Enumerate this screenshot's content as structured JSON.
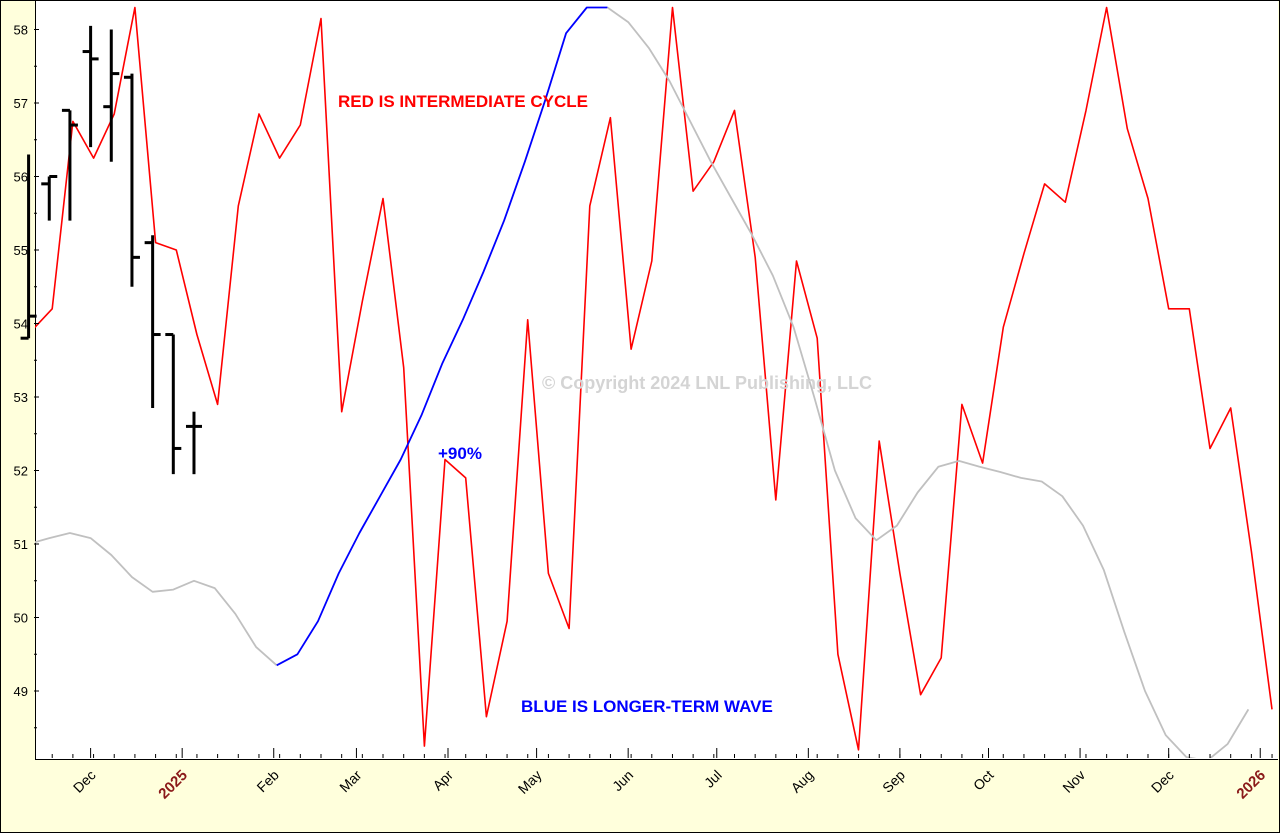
{
  "chart_data": {
    "type": "line",
    "title": "",
    "xlabel": "",
    "ylabel": "",
    "ylim": [
      48.3,
      58.3
    ],
    "yticks": [
      49,
      50,
      51,
      52,
      53,
      54,
      55,
      56,
      57,
      58
    ],
    "grid": false,
    "x_tick_labels": [
      {
        "label": "Dec",
        "year": false
      },
      {
        "label": "2025",
        "year": true
      },
      {
        "label": "Feb",
        "year": false
      },
      {
        "label": "Mar",
        "year": false
      },
      {
        "label": "Apr",
        "year": false
      },
      {
        "label": "May",
        "year": false
      },
      {
        "label": "Jun",
        "year": false
      },
      {
        "label": "Jul",
        "year": false
      },
      {
        "label": "Aug",
        "year": false
      },
      {
        "label": "Sep",
        "year": false
      },
      {
        "label": "Oct",
        "year": false
      },
      {
        "label": "Nov",
        "year": false
      },
      {
        "label": "Dec",
        "year": false
      },
      {
        "label": "2026",
        "year": true
      }
    ],
    "series": [
      {
        "color": "#ff0000",
        "points": [
          [
            "2024-11-04",
            53.65
          ],
          [
            "2024-11-11",
            53.9
          ],
          [
            "2024-11-18",
            54.2
          ],
          [
            "2024-11-25",
            56.75
          ],
          [
            "2024-12-02",
            56.25
          ],
          [
            "2024-12-09",
            56.85
          ],
          [
            "2024-12-16",
            58.3
          ],
          [
            "2024-12-23",
            55.1
          ],
          [
            "2024-12-30",
            55.0
          ],
          [
            "2025-01-06",
            53.85
          ],
          [
            "2025-01-13",
            52.9
          ],
          [
            "2025-01-20",
            55.6
          ],
          [
            "2025-01-27",
            56.85
          ],
          [
            "2025-02-03",
            56.25
          ],
          [
            "2025-02-10",
            56.7
          ],
          [
            "2025-02-17",
            58.15
          ],
          [
            "2025-02-24",
            52.8
          ],
          [
            "2025-03-03",
            54.3
          ],
          [
            "2025-03-10",
            55.7
          ],
          [
            "2025-03-17",
            53.4
          ],
          [
            "2025-03-24",
            48.25
          ],
          [
            "2025-03-31",
            52.15
          ],
          [
            "2025-04-07",
            51.9
          ],
          [
            "2025-04-14",
            48.65
          ],
          [
            "2025-04-21",
            49.95
          ],
          [
            "2025-04-28",
            54.05
          ],
          [
            "2025-05-05",
            50.6
          ],
          [
            "2025-05-12",
            49.85
          ],
          [
            "2025-05-19",
            55.6
          ],
          [
            "2025-05-26",
            56.8
          ],
          [
            "2025-06-02",
            53.65
          ],
          [
            "2025-06-09",
            54.85
          ],
          [
            "2025-06-16",
            58.3
          ],
          [
            "2025-06-23",
            55.8
          ],
          [
            "2025-06-30",
            56.2
          ],
          [
            "2025-07-07",
            56.9
          ],
          [
            "2025-07-14",
            54.9
          ],
          [
            "2025-07-21",
            51.6
          ],
          [
            "2025-07-28",
            54.85
          ],
          [
            "2025-08-04",
            53.8
          ],
          [
            "2025-08-11",
            49.5
          ],
          [
            "2025-08-18",
            48.2
          ],
          [
            "2025-08-25",
            52.4
          ],
          [
            "2025-09-01",
            50.6
          ],
          [
            "2025-09-08",
            48.95
          ],
          [
            "2025-09-15",
            49.45
          ],
          [
            "2025-09-22",
            52.9
          ],
          [
            "2025-09-29",
            52.1
          ],
          [
            "2025-10-06",
            53.95
          ],
          [
            "2025-10-13",
            54.95
          ],
          [
            "2025-10-20",
            55.9
          ],
          [
            "2025-10-27",
            55.65
          ],
          [
            "2025-11-03",
            56.9
          ],
          [
            "2025-11-10",
            58.3
          ],
          [
            "2025-11-17",
            56.65
          ],
          [
            "2025-11-24",
            55.7
          ],
          [
            "2025-12-01",
            54.2
          ],
          [
            "2025-12-08",
            54.2
          ],
          [
            "2025-12-15",
            52.3
          ],
          [
            "2025-12-22",
            52.85
          ],
          [
            "2025-12-29",
            50.9
          ],
          [
            "2026-01-05",
            48.75
          ]
        ]
      },
      {
        "color": "#c0c0c0",
        "points": [
          [
            "2024-11-10",
            51.0
          ],
          [
            "2024-11-17",
            51.08
          ],
          [
            "2024-11-24",
            51.15
          ],
          [
            "2024-12-01",
            51.08
          ],
          [
            "2024-12-08",
            50.85
          ],
          [
            "2024-12-15",
            50.55
          ],
          [
            "2024-12-22",
            50.35
          ],
          [
            "2024-12-29",
            50.38
          ],
          [
            "2025-01-05",
            50.5
          ],
          [
            "2025-01-12",
            50.4
          ],
          [
            "2025-01-19",
            50.05
          ],
          [
            "2025-01-26",
            49.6
          ],
          [
            "2025-02-02",
            49.35
          ]
        ]
      },
      {
        "color": "#0000ff",
        "points": [
          [
            "2025-02-02",
            49.35
          ],
          [
            "2025-02-09",
            49.5
          ],
          [
            "2025-02-16",
            49.95
          ],
          [
            "2025-02-23",
            50.6
          ],
          [
            "2025-03-02",
            51.15
          ],
          [
            "2025-03-09",
            51.65
          ],
          [
            "2025-03-16",
            52.15
          ],
          [
            "2025-03-23",
            52.75
          ],
          [
            "2025-03-30",
            53.45
          ],
          [
            "2025-04-06",
            54.05
          ],
          [
            "2025-04-13",
            54.7
          ],
          [
            "2025-04-20",
            55.4
          ],
          [
            "2025-04-27",
            56.2
          ],
          [
            "2025-05-04",
            57.05
          ],
          [
            "2025-05-11",
            57.95
          ],
          [
            "2025-05-18",
            58.3
          ],
          [
            "2025-05-25",
            58.3
          ]
        ]
      },
      {
        "color": "#c0c0c0",
        "points": [
          [
            "2025-05-25",
            58.3
          ],
          [
            "2025-06-01",
            58.1
          ],
          [
            "2025-06-08",
            57.75
          ],
          [
            "2025-06-15",
            57.3
          ],
          [
            "2025-06-22",
            56.75
          ],
          [
            "2025-06-29",
            56.2
          ],
          [
            "2025-07-06",
            55.7
          ],
          [
            "2025-07-13",
            55.2
          ],
          [
            "2025-07-20",
            54.65
          ],
          [
            "2025-07-27",
            53.95
          ],
          [
            "2025-08-03",
            53.0
          ],
          [
            "2025-08-10",
            52.0
          ],
          [
            "2025-08-17",
            51.35
          ],
          [
            "2025-08-24",
            51.05
          ],
          [
            "2025-08-31",
            51.25
          ],
          [
            "2025-09-07",
            51.7
          ],
          [
            "2025-09-14",
            52.05
          ],
          [
            "2025-09-21",
            52.13
          ],
          [
            "2025-09-28",
            52.05
          ],
          [
            "2025-10-05",
            51.98
          ],
          [
            "2025-10-12",
            51.9
          ],
          [
            "2025-10-19",
            51.85
          ],
          [
            "2025-10-26",
            51.65
          ],
          [
            "2025-11-02",
            51.25
          ],
          [
            "2025-11-09",
            50.65
          ],
          [
            "2025-11-16",
            49.8
          ],
          [
            "2025-11-23",
            49.0
          ],
          [
            "2025-11-30",
            48.4
          ],
          [
            "2025-12-07",
            48.1
          ],
          [
            "2025-12-14",
            48.05
          ],
          [
            "2025-12-21",
            48.28
          ],
          [
            "2025-12-28",
            48.75
          ]
        ]
      }
    ],
    "ohlc": [
      {
        "date": "2024-11-10",
        "open": 53.8,
        "high": 56.3,
        "low": 53.8,
        "close": 54.1
      },
      {
        "date": "2024-11-17",
        "open": 55.9,
        "high": 56.0,
        "low": 55.4,
        "close": 56.0
      },
      {
        "date": "2024-11-24",
        "open": 56.9,
        "high": 56.9,
        "low": 55.4,
        "close": 56.7
      },
      {
        "date": "2024-12-01",
        "open": 57.7,
        "high": 58.05,
        "low": 56.4,
        "close": 57.6
      },
      {
        "date": "2024-12-08",
        "open": 56.95,
        "high": 58.0,
        "low": 56.2,
        "close": 57.4
      },
      {
        "date": "2024-12-15",
        "open": 57.35,
        "high": 57.4,
        "low": 54.5,
        "close": 54.9
      },
      {
        "date": "2024-12-22",
        "open": 55.1,
        "high": 55.2,
        "low": 52.85,
        "close": 53.85
      },
      {
        "date": "2024-12-29",
        "open": 53.85,
        "high": 53.85,
        "low": 51.95,
        "close": 52.3
      },
      {
        "date": "2025-01-05",
        "open": 52.6,
        "high": 52.8,
        "low": 51.95,
        "close": 52.6
      }
    ],
    "annotations": [
      {
        "text": "RED IS INTERMEDIATE CYCLE",
        "color": "#ff0000"
      },
      {
        "text": "+90%",
        "color": "#0000ff"
      },
      {
        "text": "BLUE IS LONGER-TERM WAVE",
        "color": "#0000ff"
      },
      {
        "text": "© Copyright 2024 LNL Publishing, LLC",
        "color": "#d4d4d4"
      }
    ]
  }
}
